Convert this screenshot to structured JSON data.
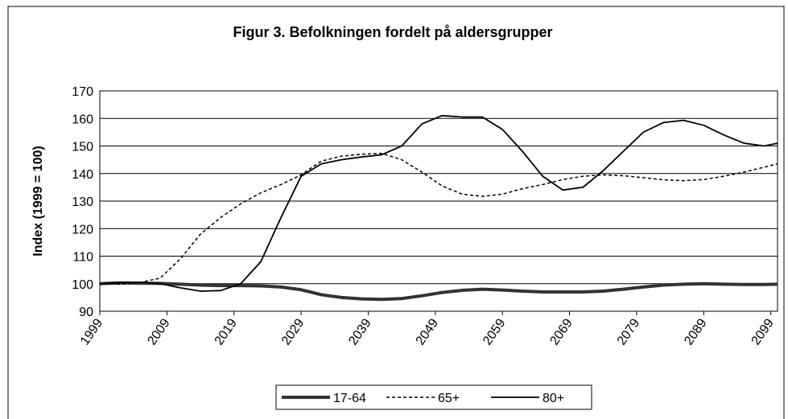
{
  "chart_data": {
    "type": "line",
    "title": "Figur 3. Befolkningen fordelt på aldersgrupper",
    "y_label": "Index (1999 = 100)",
    "x": [
      1999,
      2002,
      2005,
      2008,
      2011,
      2014,
      2017,
      2020,
      2023,
      2026,
      2029,
      2032,
      2035,
      2038,
      2041,
      2044,
      2047,
      2050,
      2053,
      2056,
      2059,
      2062,
      2065,
      2068,
      2071,
      2074,
      2077,
      2080,
      2083,
      2086,
      2089,
      2092,
      2095,
      2098,
      2100
    ],
    "series": [
      {
        "name": "17-64",
        "color": "#333333",
        "width": 4,
        "dash": false,
        "values": [
          100,
          100.3,
          100.2,
          100.1,
          99.8,
          99.5,
          99.3,
          99.3,
          99.2,
          98.8,
          97.8,
          96,
          95,
          94.5,
          94.3,
          94.6,
          95.6,
          96.8,
          97.6,
          98,
          97.7,
          97.3,
          97,
          97,
          97,
          97.3,
          98,
          98.8,
          99.5,
          99.8,
          100,
          99.8,
          99.7,
          99.7,
          99.8
        ]
      },
      {
        "name": "65+",
        "color": "#000000",
        "width": 1.5,
        "dash": true,
        "values": [
          100,
          99.8,
          100.5,
          102,
          109,
          118,
          124,
          129,
          133,
          136,
          139.5,
          144.5,
          146.3,
          147,
          147.3,
          145,
          140.5,
          135.5,
          132.5,
          131.7,
          132.5,
          134.5,
          136,
          137.8,
          139,
          139.5,
          139.2,
          138.5,
          137.7,
          137.4,
          137.8,
          139,
          140.5,
          142.3,
          143.5
        ]
      },
      {
        "name": "80+",
        "color": "#000000",
        "width": 1.8,
        "dash": false,
        "values": [
          100,
          100.4,
          100.5,
          100,
          98.5,
          97.3,
          97.5,
          100,
          108,
          124,
          139,
          143.5,
          145,
          146,
          146.8,
          150,
          158,
          161,
          160.5,
          160.5,
          156,
          148,
          139,
          134,
          135,
          141,
          148,
          155,
          158.5,
          159.3,
          157.5,
          154,
          151,
          150,
          151
        ]
      }
    ],
    "xlim": [
      1999,
      2100
    ],
    "xticks": [
      1999,
      2009,
      2019,
      2029,
      2039,
      2049,
      2059,
      2069,
      2079,
      2089,
      2099
    ],
    "ylim": [
      90,
      170
    ],
    "yticks": [
      90,
      100,
      110,
      120,
      130,
      140,
      150,
      160,
      170
    ],
    "grid": true,
    "legend": "bottom"
  }
}
